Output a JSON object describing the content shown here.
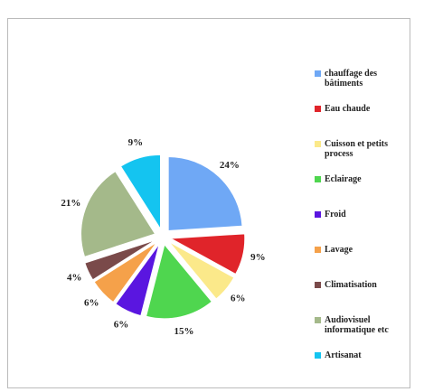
{
  "chart_data": {
    "type": "pie",
    "categories": [
      "chauffage des bâtiments",
      "Eau chaude",
      "Cuisson et petits process",
      "Eclairage",
      "Froid",
      "Lavage",
      "Climatisation",
      "Audiovisuel informatique etc",
      "Artisanat"
    ],
    "values": [
      24,
      9,
      6,
      15,
      6,
      6,
      4,
      21,
      9
    ],
    "value_labels": [
      "24%",
      "9%",
      "6%",
      "15%",
      "6%",
      "6%",
      "4%",
      "21%",
      "9%"
    ],
    "colors": [
      "#6fa8f5",
      "#e0242a",
      "#fbe98a",
      "#4fd64f",
      "#5a16e0",
      "#f5a14a",
      "#7a4a4a",
      "#a4b98a",
      "#14c4f0"
    ],
    "legend": "right"
  }
}
